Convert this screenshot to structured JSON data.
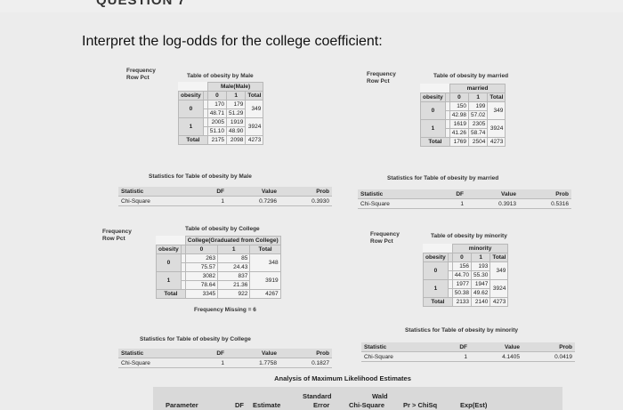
{
  "header": {
    "partial_title": "QUESTION 7"
  },
  "question": "Interpret the log-odds for the college coefficient:",
  "common": {
    "freq_label_1": "Frequency",
    "freq_label_2": "Row Pct",
    "stat_title_prefix": "Statistics for Table of obesity by",
    "stat_headers": [
      "Statistic",
      "DF",
      "Value",
      "Prob"
    ],
    "chi": "Chi-Square",
    "total": "Total",
    "obesity": "obesity"
  },
  "male_table": {
    "title": "Table of obesity by Male",
    "col_var": "Male(Male)",
    "cols": [
      "0",
      "1",
      "Total"
    ],
    "rows": [
      {
        "label": "0",
        "c0": "170",
        "c0p": "48.71",
        "c1": "179",
        "c1p": "51.29",
        "t": "349"
      },
      {
        "label": "1",
        "c0": "2005",
        "c0p": "51.10",
        "c1": "1919",
        "c1p": "48.90",
        "t": "3924"
      }
    ],
    "totals": [
      "2175",
      "2098",
      "4273"
    ]
  },
  "male_stats": {
    "title": "Statistics for Table of obesity by Male",
    "df": "1",
    "value": "0.7296",
    "prob": "0.3930"
  },
  "married_table": {
    "title": "Table of obesity by married",
    "col_var": "married",
    "cols": [
      "0",
      "1",
      "Total"
    ],
    "rows": [
      {
        "label": "0",
        "c0": "150",
        "c0p": "42.98",
        "c1": "199",
        "c1p": "57.02",
        "t": "349"
      },
      {
        "label": "1",
        "c0": "1619",
        "c0p": "41.26",
        "c1": "2305",
        "c1p": "58.74",
        "t": "3924"
      }
    ],
    "totals": [
      "1769",
      "2504",
      "4273"
    ]
  },
  "married_stats": {
    "title": "Statistics for Table of obesity by married",
    "df": "1",
    "value": "0.3913",
    "prob": "0.5316"
  },
  "college_table": {
    "title": "Table of obesity by College",
    "col_var": "College(Graduated from College)",
    "cols": [
      "0",
      "1",
      "Total"
    ],
    "rows": [
      {
        "label": "0",
        "c0": "263",
        "c0p": "75.57",
        "c1": "85",
        "c1p": "24.43",
        "t": "348"
      },
      {
        "label": "1",
        "c0": "3082",
        "c0p": "78.64",
        "c1": "837",
        "c1p": "21.36",
        "t": "3919"
      }
    ],
    "totals": [
      "3345",
      "922",
      "4267"
    ],
    "missing": "Frequency Missing = 6"
  },
  "college_stats": {
    "title": "Statistics for Table of obesity by College",
    "df": "1",
    "value": "1.7758",
    "prob": "0.1827"
  },
  "minority_table": {
    "title": "Table of obesity by minority",
    "col_var": "minority",
    "cols": [
      "0",
      "1",
      "Total"
    ],
    "rows": [
      {
        "label": "0",
        "c0": "156",
        "c0p": "44.70",
        "c1": "193",
        "c1p": "55.30",
        "t": "349"
      },
      {
        "label": "1",
        "c0": "1977",
        "c0p": "50.38",
        "c1": "1947",
        "c1p": "49.62",
        "t": "3924"
      }
    ],
    "totals": [
      "2133",
      "2140",
      "4273"
    ]
  },
  "minority_stats": {
    "title": "Statistics for Table of obesity by minority",
    "df": "1",
    "value": "4.1405",
    "prob": "0.0419"
  },
  "ml": {
    "title": "Analysis of Maximum Likelihood Estimates",
    "headers": [
      "Parameter",
      "DF",
      "Estimate",
      "Standard",
      "Error",
      "Wald",
      "Chi-Square",
      "Pr > ChiSq",
      "Exp(Est)"
    ]
  }
}
